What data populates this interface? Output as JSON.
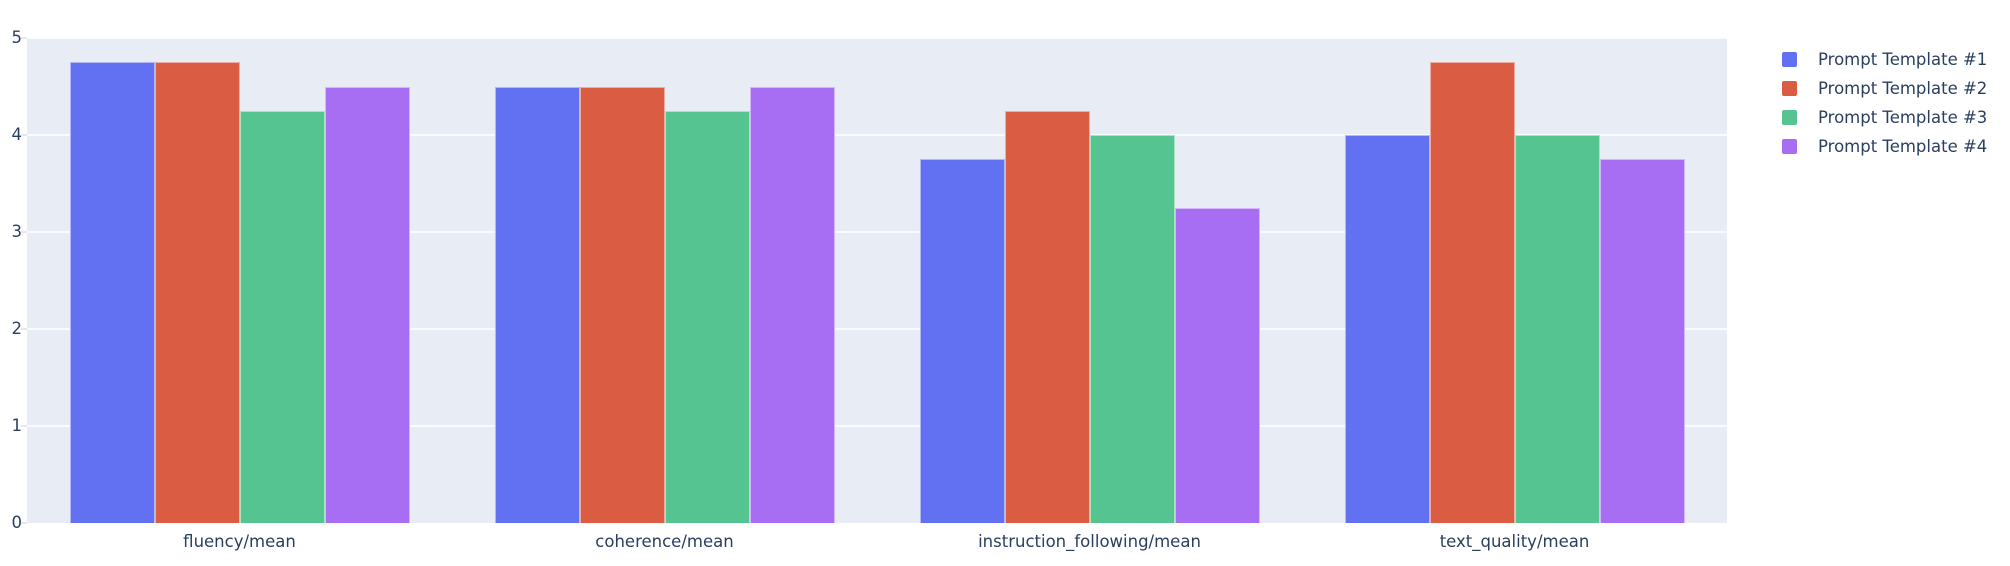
{
  "page": {
    "background": "#ffffff"
  },
  "chart": {
    "plot_bg": "#e7ecf5",
    "grid_color": "rgba(255,255,255,0.78)",
    "tick_mark_color": "#e4e9f1",
    "font_color": "#2a3f5f",
    "bar_border_color": "rgba(255,255,255,0.5)"
  },
  "chart_data": {
    "type": "bar",
    "barmode": "group",
    "title": "",
    "xlabel": "",
    "ylabel": "",
    "grid": true,
    "legend_position": "right",
    "ylim": [
      0,
      5
    ],
    "yticks": [
      0,
      1,
      2,
      3,
      4,
      5
    ],
    "categories": [
      "fluency/mean",
      "coherence/mean",
      "instruction_following/mean",
      "text_quality/mean"
    ],
    "series": [
      {
        "name": "Prompt Template #1",
        "color": "#6270f2",
        "values": [
          4.75,
          4.5,
          3.75,
          4.0
        ]
      },
      {
        "name": "Prompt Template #2",
        "color": "#da5c42",
        "values": [
          4.75,
          4.5,
          4.25,
          4.75
        ]
      },
      {
        "name": "Prompt Template #3",
        "color": "#55c491",
        "values": [
          4.25,
          4.25,
          4.0,
          4.0
        ]
      },
      {
        "name": "Prompt Template #4",
        "color": "#a76ef3",
        "values": [
          4.5,
          4.5,
          3.25,
          3.75
        ]
      }
    ]
  }
}
